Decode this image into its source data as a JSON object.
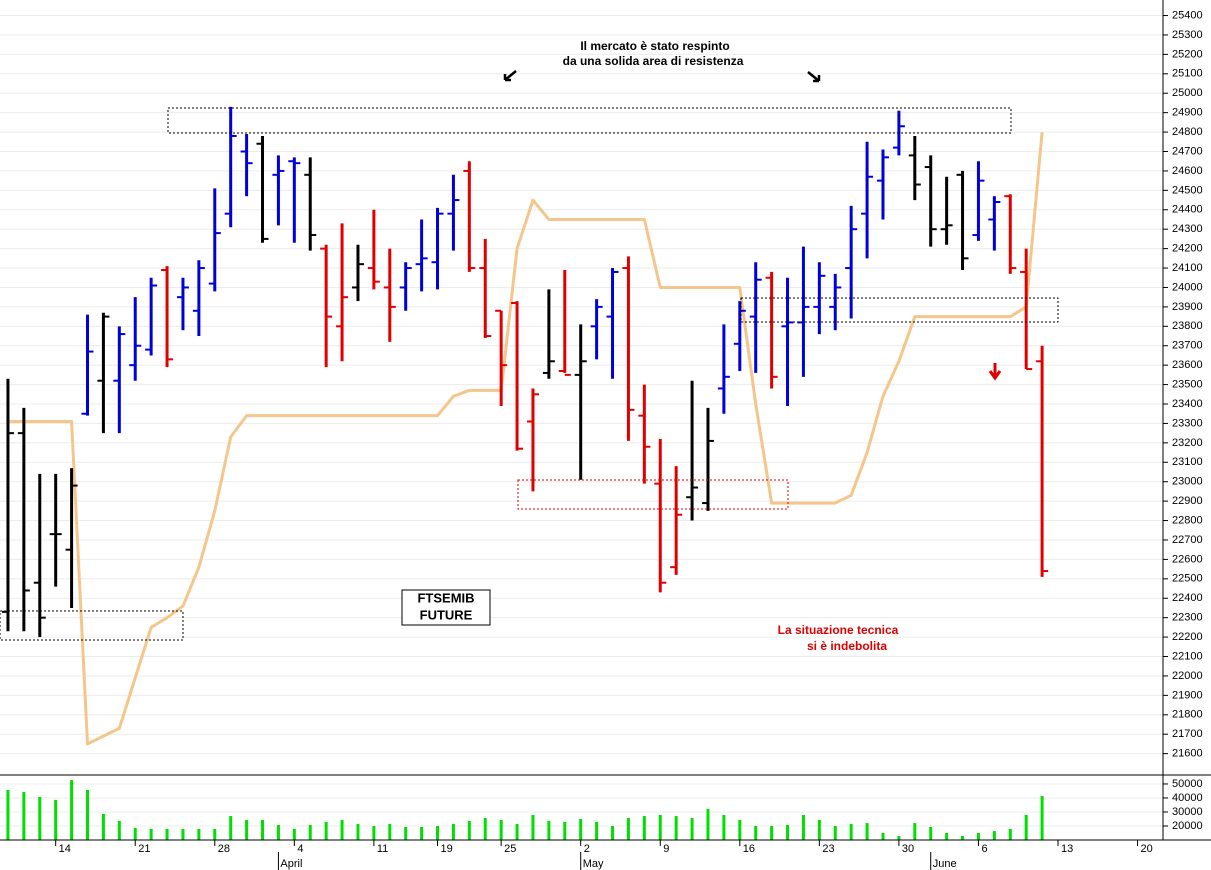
{
  "chart_data": {
    "type": "ohlc",
    "open": [
      22330,
      23250,
      22480,
      22730,
      22650,
      23350,
      23520,
      23520,
      23600,
      23680,
      24090,
      23950,
      23880,
      24020,
      24380,
      24700,
      24740,
      24580,
      24650,
      24580,
      24200,
      23800,
      24000,
      24100,
      24000,
      24000,
      24120,
      24130,
      24380,
      24600,
      24100,
      23880,
      23920,
      23310,
      23560,
      23570,
      23550,
      23800,
      23850,
      24100,
      23340,
      22990,
      22560,
      22920,
      22890,
      23480,
      23710,
      23850,
      24050,
      23800,
      23820,
      23900,
      23900,
      24100,
      24380,
      24550,
      24720,
      24680,
      24620,
      24300,
      24580,
      24270,
      24350,
      24470,
      24080,
      23620
    ],
    "high": [
      23530,
      23380,
      23040,
      23040,
      23070,
      23860,
      23870,
      23800,
      23950,
      24050,
      24110,
      24050,
      24140,
      24510,
      24930,
      24790,
      24780,
      24680,
      24670,
      24670,
      24220,
      24330,
      24220,
      24400,
      24200,
      24130,
      24350,
      24410,
      24580,
      24650,
      24250,
      23880,
      23930,
      23480,
      23990,
      24090,
      23810,
      23940,
      24100,
      24160,
      23500,
      23220,
      23080,
      23520,
      23380,
      23810,
      23930,
      24130,
      24080,
      24050,
      24210,
      24130,
      24070,
      24420,
      24750,
      24710,
      24910,
      24780,
      24680,
      24570,
      24600,
      24650,
      24470,
      24480,
      24200,
      23700
    ],
    "low": [
      22230,
      22230,
      22200,
      22460,
      22350,
      23340,
      23250,
      23250,
      23520,
      23650,
      23590,
      23780,
      23750,
      23980,
      24310,
      24470,
      24230,
      24320,
      24230,
      24190,
      23590,
      23620,
      23930,
      23990,
      23720,
      23880,
      23980,
      23990,
      24190,
      24080,
      23740,
      23390,
      23160,
      22950,
      23530,
      23560,
      23010,
      23630,
      23530,
      23210,
      22990,
      22430,
      22520,
      22800,
      22850,
      23350,
      23570,
      23560,
      23480,
      23390,
      23540,
      23760,
      23780,
      23840,
      24150,
      24350,
      24680,
      24450,
      24210,
      24220,
      24090,
      24240,
      24190,
      24070,
      23580,
      22510
    ],
    "close": [
      23250,
      22440,
      22300,
      22730,
      22980,
      23670,
      23850,
      23760,
      23700,
      24010,
      23630,
      24000,
      24100,
      24280,
      24780,
      24640,
      24250,
      24600,
      24640,
      24270,
      23850,
      23950,
      24120,
      24030,
      23900,
      24100,
      24150,
      24380,
      24450,
      24100,
      23750,
      23600,
      23170,
      23450,
      23620,
      23550,
      23620,
      23900,
      24080,
      23370,
      23180,
      22480,
      22830,
      22970,
      23210,
      23540,
      23880,
      24040,
      23540,
      23820,
      23900,
      24060,
      24000,
      24300,
      24570,
      24670,
      24830,
      24530,
      24300,
      24320,
      24150,
      24550,
      24440,
      24100,
      23580,
      22540
    ],
    "colors": [
      "#000",
      "#000",
      "#000",
      "#000",
      "#000",
      "#0000dd",
      "#000",
      "#0000dd",
      "#0000dd",
      "#0000dd",
      "#e00000",
      "#0000dd",
      "#0000dd",
      "#0000dd",
      "#0000dd",
      "#0000dd",
      "#000",
      "#0000dd",
      "#0000dd",
      "#000",
      "#e00000",
      "#e00000",
      "#000",
      "#e00000",
      "#e00000",
      "#0000dd",
      "#0000dd",
      "#0000dd",
      "#0000dd",
      "#e00000",
      "#e00000",
      "#e00000",
      "#e00000",
      "#e00000",
      "#000",
      "#e00000",
      "#000",
      "#0000dd",
      "#0000dd",
      "#e00000",
      "#e00000",
      "#e00000",
      "#e00000",
      "#000",
      "#000",
      "#0000dd",
      "#0000dd",
      "#0000dd",
      "#e00000",
      "#0000dd",
      "#0000dd",
      "#0000dd",
      "#0000dd",
      "#0000dd",
      "#0000dd",
      "#0000dd",
      "#0000dd",
      "#000",
      "#000",
      "#000",
      "#000",
      "#0000dd",
      "#0000dd",
      "#e00000",
      "#e00000",
      "#e00000"
    ],
    "line": {
      "color": "#f5c68c",
      "values": [
        23310,
        23310,
        23310,
        23310,
        23310,
        21650,
        21690,
        21730,
        21990,
        22250,
        22300,
        22360,
        22560,
        22850,
        23230,
        23340,
        23340,
        23340,
        23340,
        23340,
        23340,
        23340,
        23340,
        23340,
        23340,
        23340,
        23340,
        23340,
        23440,
        23470,
        23470,
        23470,
        24200,
        24450,
        24350,
        24350,
        24350,
        24350,
        24350,
        24350,
        24350,
        24000,
        24000,
        24000,
        24000,
        24000,
        24000,
        23400,
        22890,
        22890,
        22890,
        22890,
        22890,
        22930,
        23150,
        23440,
        23620,
        23850,
        23850,
        23850,
        23850,
        23850,
        23850,
        23850,
        23900,
        24800
      ]
    },
    "volume": {
      "color": "#00e000",
      "values": [
        45700,
        44300,
        40700,
        38600,
        52800,
        45700,
        28600,
        23600,
        18600,
        17900,
        17900,
        17900,
        17900,
        17900,
        27100,
        24300,
        24300,
        20700,
        17900,
        20700,
        22900,
        24300,
        21400,
        20000,
        21400,
        19300,
        19300,
        20000,
        21400,
        23600,
        25700,
        24300,
        21400,
        27900,
        23600,
        22900,
        25000,
        22900,
        20000,
        25700,
        27100,
        27900,
        27100,
        25700,
        32100,
        27900,
        24300,
        20000,
        20000,
        20700,
        27900,
        24300,
        20000,
        21400,
        22100,
        15000,
        12900,
        22100,
        19300,
        15000,
        12900,
        15000,
        16400,
        17900,
        27900,
        41400
      ],
      "ylim": [
        10000,
        56400
      ],
      "yticks": [
        20000,
        30000,
        40000,
        50000
      ]
    },
    "ylim": [
      21490,
      25480
    ],
    "yticks": [
      21600,
      21700,
      21800,
      21900,
      22000,
      22100,
      22200,
      22300,
      22400,
      22500,
      22600,
      22700,
      22800,
      22900,
      23000,
      23100,
      23200,
      23300,
      23400,
      23500,
      23600,
      23700,
      23800,
      23900,
      24000,
      24100,
      24200,
      24300,
      24400,
      24500,
      24600,
      24700,
      24800,
      24900,
      25000,
      25100,
      25200,
      25300,
      25400
    ],
    "xlim": [
      -0.5,
      72.6
    ],
    "xticks": [
      {
        "value": 3,
        "label": "14"
      },
      {
        "value": 8,
        "label": "21"
      },
      {
        "value": 13,
        "label": "28"
      },
      {
        "value": 18,
        "label": "4"
      },
      {
        "value": 23,
        "label": "11"
      },
      {
        "value": 27,
        "label": "19"
      },
      {
        "value": 31,
        "label": "25"
      },
      {
        "value": 36,
        "label": "2"
      },
      {
        "value": 41,
        "label": "9"
      },
      {
        "value": 46,
        "label": "16"
      },
      {
        "value": 51,
        "label": "23"
      },
      {
        "value": 56,
        "label": "30"
      },
      {
        "value": 61,
        "label": "6"
      },
      {
        "value": 66,
        "label": "13"
      },
      {
        "value": 71,
        "label": "20"
      }
    ],
    "months": [
      {
        "value": 17,
        "label": "April"
      },
      {
        "value": 36,
        "label": "May"
      },
      {
        "value": 58,
        "label": "June"
      }
    ],
    "grid": true,
    "annotations": {
      "top_note": [
        "Il mercato è stato respinto",
        "da una solida area di resistenza"
      ],
      "label_box": [
        "FTSEMIB",
        "FUTURE"
      ],
      "bottom_note": [
        "La situazione tecnica",
        "si è indebolita"
      ]
    }
  }
}
